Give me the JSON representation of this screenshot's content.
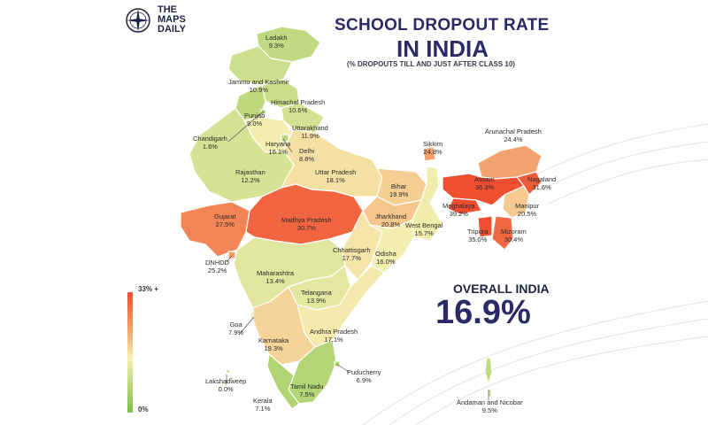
{
  "brand": {
    "line1": "THE",
    "line2": "MAPS",
    "line3": "DAILY",
    "icon": "compass-icon"
  },
  "title_line1": "SCHOOL DROPOUT RATE",
  "title_line2": "IN INDIA",
  "subtitle": "(% DROPOUTS TILL AND JUST AFTER CLASS 10)",
  "overall": {
    "label": "OVERALL INDIA",
    "value": "16.9%"
  },
  "legend": {
    "top": "33% +",
    "bottom": "0%",
    "colors": [
      "#ef4e2f",
      "#f3a06a",
      "#f6efb2",
      "#b9d77a",
      "#79bf43"
    ]
  },
  "regions": [
    {
      "name": "Ladakh",
      "value": "9.3%",
      "rate": 9.3
    },
    {
      "name": "Jammu and Kashmir",
      "value": "10.9%",
      "rate": 10.9
    },
    {
      "name": "Himachal Pradesh",
      "value": "10.6%",
      "rate": 10.6
    },
    {
      "name": "Punjab",
      "value": "9.0%",
      "rate": 9.0
    },
    {
      "name": "Chandigarh",
      "value": "1.6%",
      "rate": 1.6
    },
    {
      "name": "Uttarakhand",
      "value": "11.9%",
      "rate": 11.9
    },
    {
      "name": "Haryana",
      "value": "16.1%",
      "rate": 16.1
    },
    {
      "name": "Delhi",
      "value": "8.8%",
      "rate": 8.8
    },
    {
      "name": "Rajasthan",
      "value": "12.2%",
      "rate": 12.2
    },
    {
      "name": "Uttar Pradesh",
      "value": "18.1%",
      "rate": 18.1
    },
    {
      "name": "Sikkim",
      "value": "24.8%",
      "rate": 24.8
    },
    {
      "name": "Arunachal Pradesh",
      "value": "24.4%",
      "rate": 24.4
    },
    {
      "name": "Bihar",
      "value": "19.9%",
      "rate": 19.9
    },
    {
      "name": "Assam",
      "value": "36.3%",
      "rate": 36.3
    },
    {
      "name": "Nagaland",
      "value": "31.6%",
      "rate": 31.6
    },
    {
      "name": "Meghalaya",
      "value": "39.2%",
      "rate": 39.2
    },
    {
      "name": "Manipur",
      "value": "20.5%",
      "rate": 20.5
    },
    {
      "name": "Gujarat",
      "value": "27.5%",
      "rate": 27.5
    },
    {
      "name": "Madhya Pradesh",
      "value": "30.7%",
      "rate": 30.7
    },
    {
      "name": "Jharkhand",
      "value": "20.8%",
      "rate": 20.8
    },
    {
      "name": "West Bengal",
      "value": "15.7%",
      "rate": 15.7
    },
    {
      "name": "Tripura",
      "value": "35.0%",
      "rate": 35.0
    },
    {
      "name": "Mizoram",
      "value": "30.4%",
      "rate": 30.4
    },
    {
      "name": "DNHDD",
      "value": "25.2%",
      "rate": 25.2
    },
    {
      "name": "Chhattisgarh",
      "value": "17.7%",
      "rate": 17.7
    },
    {
      "name": "Odisha",
      "value": "16.0%",
      "rate": 16.0
    },
    {
      "name": "Maharashtra",
      "value": "13.4%",
      "rate": 13.4
    },
    {
      "name": "Telangana",
      "value": "13.9%",
      "rate": 13.9
    },
    {
      "name": "Goa",
      "value": "7.9%",
      "rate": 7.9
    },
    {
      "name": "Andhra Pradesh",
      "value": "17.1%",
      "rate": 17.1
    },
    {
      "name": "Karnataka",
      "value": "19.3%",
      "rate": 19.3
    },
    {
      "name": "Lakshadweep",
      "value": "0.0%",
      "rate": 0.0
    },
    {
      "name": "Puducherry",
      "value": "6.9%",
      "rate": 6.9
    },
    {
      "name": "Tamil Nadu",
      "value": "7.5%",
      "rate": 7.5
    },
    {
      "name": "Kerala",
      "value": "7.1%",
      "rate": 7.1
    },
    {
      "name": "Andaman and Nicobar",
      "value": "9.5%",
      "rate": 9.5
    }
  ]
}
